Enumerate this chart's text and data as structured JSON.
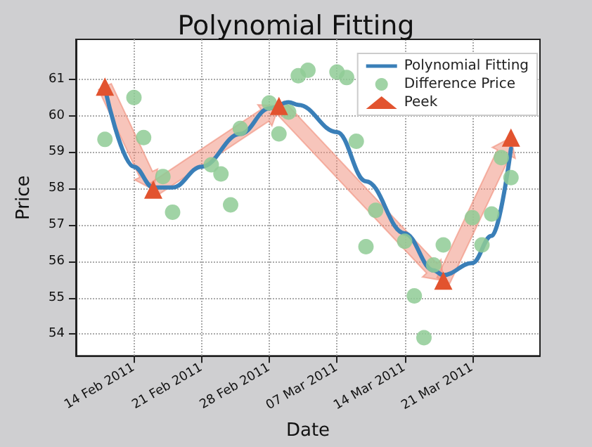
{
  "chart_data": {
    "type": "line",
    "title": "Polynomial Fitting",
    "xlabel": "Date",
    "ylabel": "Price",
    "xlim": [
      "2011-02-08",
      "2011-03-28"
    ],
    "xticks": [
      {
        "value": "2011-02-14",
        "label": "14 Feb 2011"
      },
      {
        "value": "2011-02-21",
        "label": "21 Feb 2011"
      },
      {
        "value": "2011-02-28",
        "label": "28 Feb 2011"
      },
      {
        "value": "2011-03-07",
        "label": "07 Mar 2011"
      },
      {
        "value": "2011-03-14",
        "label": "14 Mar 2011"
      },
      {
        "value": "2011-03-21",
        "label": "21 Mar 2011"
      }
    ],
    "ylim": [
      53.4,
      62.1
    ],
    "yticks": [
      54,
      55,
      56,
      57,
      58,
      59,
      60,
      61
    ],
    "grid": true,
    "legend": "top right",
    "line_style": "solid",
    "series": [
      {
        "name": "Polynomial Fitting",
        "marker": "none",
        "color": "#3a7fb8",
        "x": [
          "2011-02-11",
          "2011-02-14",
          "2011-02-16",
          "2011-02-18",
          "2011-02-21",
          "2011-02-25",
          "2011-02-28",
          "2011-03-02",
          "2011-03-03",
          "2011-03-07",
          "2011-03-10",
          "2011-03-14",
          "2011-03-17",
          "2011-03-18",
          "2011-03-21",
          "2011-03-23",
          "2011-03-25"
        ],
        "values": [
          60.75,
          58.6,
          58.03,
          58.03,
          58.6,
          59.5,
          60.2,
          60.37,
          60.3,
          59.55,
          58.2,
          56.77,
          55.75,
          55.62,
          55.95,
          56.7,
          59.1
        ]
      },
      {
        "name": "Difference Price",
        "type": "scatter",
        "marker": "circle",
        "color": "#8fcb95",
        "x": [
          "2011-02-11",
          "2011-02-14",
          "2011-02-15",
          "2011-02-17",
          "2011-02-18",
          "2011-02-22",
          "2011-02-23",
          "2011-02-24",
          "2011-02-25",
          "2011-02-28",
          "2011-03-01",
          "2011-03-02",
          "2011-03-03",
          "2011-03-04",
          "2011-03-07",
          "2011-03-08",
          "2011-03-09",
          "2011-03-10",
          "2011-03-11",
          "2011-03-14",
          "2011-03-15",
          "2011-03-16",
          "2011-03-17",
          "2011-03-18",
          "2011-03-21",
          "2011-03-22",
          "2011-03-23",
          "2011-03-24",
          "2011-03-25"
        ],
        "values": [
          59.35,
          60.5,
          59.4,
          58.33,
          57.35,
          58.65,
          58.4,
          57.55,
          59.65,
          60.35,
          59.5,
          60.1,
          61.1,
          61.25,
          61.2,
          61.05,
          59.3,
          56.4,
          57.4,
          56.55,
          55.05,
          53.9,
          55.9,
          56.45,
          57.2,
          56.45,
          57.3,
          58.85,
          58.3
        ]
      },
      {
        "name": "Peek",
        "type": "scatter",
        "marker": "triangle",
        "color": "#e2532f",
        "x": [
          "2011-02-11",
          "2011-02-16",
          "2011-03-01",
          "2011-03-18",
          "2011-03-25"
        ],
        "values": [
          60.8,
          57.97,
          60.27,
          55.47,
          59.4
        ]
      }
    ]
  }
}
